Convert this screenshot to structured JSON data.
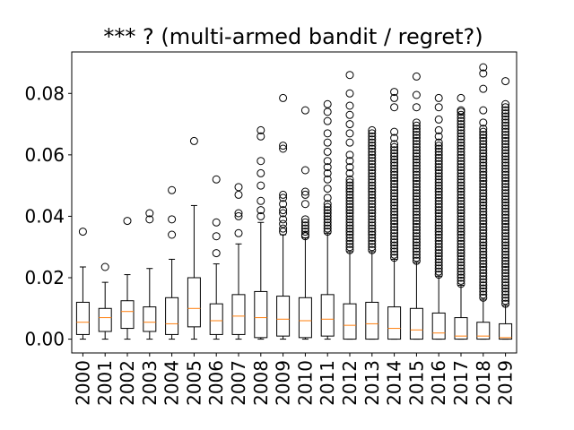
{
  "chart_data": {
    "type": "boxplot",
    "title": "*** ? (multi-armed bandit / regret?)",
    "xlabel": "",
    "ylabel": "",
    "ylim": [
      -0.0045,
      0.0935
    ],
    "yticks": [
      0.0,
      0.02,
      0.04,
      0.06,
      0.08
    ],
    "ytick_labels": [
      "0.00",
      "0.02",
      "0.04",
      "0.06",
      "0.08"
    ],
    "grid": false,
    "colors": {
      "box": "#000000",
      "median": "#ff7f0e",
      "flier": "#000000"
    },
    "categories": [
      "2000",
      "2001",
      "2002",
      "2003",
      "2004",
      "2005",
      "2006",
      "2007",
      "2008",
      "2009",
      "2010",
      "2011",
      "2012",
      "2013",
      "2014",
      "2015",
      "2016",
      "2017",
      "2018",
      "2019"
    ],
    "boxes": [
      {
        "label": "2000",
        "whislo": 0.0,
        "q1": 0.0015,
        "med": 0.0055,
        "q3": 0.012,
        "whishi": 0.0235,
        "fliers": [
          0.035
        ]
      },
      {
        "label": "2001",
        "whislo": 0.0,
        "q1": 0.0025,
        "med": 0.007,
        "q3": 0.01,
        "whishi": 0.0185,
        "fliers": [
          0.0235
        ]
      },
      {
        "label": "2002",
        "whislo": 0.0,
        "q1": 0.0035,
        "med": 0.009,
        "q3": 0.0125,
        "whishi": 0.021,
        "fliers": [
          0.0385
        ]
      },
      {
        "label": "2003",
        "whislo": 0.0,
        "q1": 0.0025,
        "med": 0.0055,
        "q3": 0.0105,
        "whishi": 0.023,
        "fliers": [
          0.039,
          0.041
        ]
      },
      {
        "label": "2004",
        "whislo": 0.0,
        "q1": 0.0015,
        "med": 0.005,
        "q3": 0.0135,
        "whishi": 0.026,
        "fliers": [
          0.034,
          0.039,
          0.0485
        ]
      },
      {
        "label": "2005",
        "whislo": 0.0,
        "q1": 0.004,
        "med": 0.01,
        "q3": 0.02,
        "whishi": 0.0435,
        "fliers": [
          0.0645
        ]
      },
      {
        "label": "2006",
        "whislo": 0.0,
        "q1": 0.0015,
        "med": 0.006,
        "q3": 0.0115,
        "whishi": 0.0245,
        "fliers": [
          0.028,
          0.0335,
          0.038,
          0.052
        ]
      },
      {
        "label": "2007",
        "whislo": 0.0,
        "q1": 0.0015,
        "med": 0.0075,
        "q3": 0.0145,
        "whishi": 0.031,
        "fliers": [
          0.0345,
          0.04,
          0.041,
          0.047,
          0.0495
        ]
      },
      {
        "label": "2008",
        "whislo": 0.0,
        "q1": 0.0005,
        "med": 0.007,
        "q3": 0.0155,
        "whishi": 0.038,
        "fliers": [
          0.04,
          0.042,
          0.045,
          0.05,
          0.054,
          0.058,
          0.066,
          0.068
        ]
      },
      {
        "label": "2009",
        "whislo": 0.0,
        "q1": 0.001,
        "med": 0.0065,
        "q3": 0.014,
        "whishi": 0.034,
        "fliers": [
          0.035,
          0.036,
          0.0375,
          0.039,
          0.041,
          0.042,
          0.044,
          0.046,
          0.047,
          0.062,
          0.063,
          0.0785
        ]
      },
      {
        "label": "2010",
        "whislo": 0.0,
        "q1": 0.0005,
        "med": 0.006,
        "q3": 0.0135,
        "whishi": 0.033,
        "fliers": [
          0.0335,
          0.034,
          0.035,
          0.036,
          0.037,
          0.038,
          0.039,
          0.044,
          0.047,
          0.048,
          0.055,
          0.0745
        ]
      },
      {
        "label": "2011",
        "whislo": 0.0,
        "q1": 0.001,
        "med": 0.0065,
        "q3": 0.0145,
        "whishi": 0.0345,
        "fliers": [
          0.035,
          0.036,
          0.037,
          0.038,
          0.039,
          0.04,
          0.041,
          0.042,
          0.043,
          0.044,
          0.046,
          0.049,
          0.052,
          0.054,
          0.056,
          0.058,
          0.061,
          0.064,
          0.067,
          0.071,
          0.074,
          0.0765
        ]
      },
      {
        "label": "2012",
        "whislo": 0.0,
        "q1": 0.0,
        "med": 0.0045,
        "q3": 0.0115,
        "whishi": 0.0285,
        "fliers": [
          0.029,
          0.03,
          0.031,
          0.032,
          0.033,
          0.034,
          0.035,
          0.036,
          0.037,
          0.038,
          0.039,
          0.04,
          0.041,
          0.042,
          0.043,
          0.044,
          0.045,
          0.046,
          0.047,
          0.048,
          0.049,
          0.05,
          0.051,
          0.052,
          0.054,
          0.056,
          0.058,
          0.06,
          0.064,
          0.067,
          0.07,
          0.073,
          0.076,
          0.08,
          0.086
        ]
      },
      {
        "label": "2013",
        "whislo": 0.0,
        "q1": 0.0,
        "med": 0.005,
        "q3": 0.012,
        "whishi": 0.0285,
        "fliers": [
          0.029,
          0.03,
          0.031,
          0.032,
          0.033,
          0.034,
          0.035,
          0.036,
          0.037,
          0.038,
          0.039,
          0.04,
          0.041,
          0.042,
          0.043,
          0.044,
          0.045,
          0.046,
          0.047,
          0.048,
          0.049,
          0.05,
          0.051,
          0.052,
          0.053,
          0.054,
          0.055,
          0.056,
          0.057,
          0.058,
          0.059,
          0.06,
          0.061,
          0.062,
          0.063,
          0.064,
          0.065,
          0.066,
          0.067,
          0.068
        ]
      },
      {
        "label": "2014",
        "whislo": 0.0,
        "q1": 0.0,
        "med": 0.0035,
        "q3": 0.0105,
        "whishi": 0.026,
        "fliers": [
          0.0265,
          0.0275,
          0.0285,
          0.0295,
          0.0305,
          0.0315,
          0.0325,
          0.0335,
          0.0345,
          0.0355,
          0.0365,
          0.0375,
          0.0385,
          0.0395,
          0.0405,
          0.0415,
          0.0425,
          0.0435,
          0.0445,
          0.0455,
          0.0465,
          0.0475,
          0.0485,
          0.0495,
          0.0505,
          0.0515,
          0.0525,
          0.0535,
          0.0545,
          0.0555,
          0.0565,
          0.0575,
          0.0585,
          0.0595,
          0.0605,
          0.0615,
          0.0625,
          0.0635,
          0.0655,
          0.0675,
          0.0755,
          0.0785,
          0.0805
        ]
      },
      {
        "label": "2015",
        "whislo": 0.0,
        "q1": 0.0,
        "med": 0.003,
        "q3": 0.01,
        "whishi": 0.025,
        "fliers": [
          0.0255,
          0.0265,
          0.0275,
          0.0285,
          0.0295,
          0.0305,
          0.0315,
          0.0325,
          0.0335,
          0.0345,
          0.0355,
          0.0365,
          0.0375,
          0.0385,
          0.0395,
          0.0405,
          0.0415,
          0.0425,
          0.0435,
          0.0445,
          0.0455,
          0.0465,
          0.0475,
          0.0485,
          0.0495,
          0.0505,
          0.0515,
          0.0525,
          0.0535,
          0.0545,
          0.0555,
          0.0565,
          0.0575,
          0.0585,
          0.0595,
          0.0605,
          0.0615,
          0.0625,
          0.0635,
          0.0645,
          0.0655,
          0.0665,
          0.0675,
          0.0685,
          0.0695,
          0.0705,
          0.0755,
          0.0795,
          0.0855
        ]
      },
      {
        "label": "2016",
        "whislo": 0.0,
        "q1": 0.0,
        "med": 0.002,
        "q3": 0.0085,
        "whishi": 0.0205,
        "fliers": [
          0.021,
          0.022,
          0.023,
          0.024,
          0.025,
          0.026,
          0.027,
          0.028,
          0.029,
          0.03,
          0.031,
          0.032,
          0.033,
          0.034,
          0.035,
          0.036,
          0.037,
          0.038,
          0.039,
          0.04,
          0.041,
          0.042,
          0.043,
          0.044,
          0.045,
          0.046,
          0.047,
          0.048,
          0.049,
          0.05,
          0.051,
          0.052,
          0.053,
          0.054,
          0.055,
          0.056,
          0.057,
          0.058,
          0.059,
          0.06,
          0.061,
          0.062,
          0.063,
          0.064,
          0.066,
          0.068,
          0.0715,
          0.0755,
          0.0785
        ]
      },
      {
        "label": "2017",
        "whislo": 0.0,
        "q1": 0.0,
        "med": 0.001,
        "q3": 0.007,
        "whishi": 0.0175,
        "fliers": [
          0.018,
          0.019,
          0.02,
          0.021,
          0.022,
          0.023,
          0.024,
          0.025,
          0.026,
          0.027,
          0.028,
          0.029,
          0.03,
          0.031,
          0.032,
          0.033,
          0.034,
          0.035,
          0.036,
          0.037,
          0.038,
          0.039,
          0.04,
          0.041,
          0.042,
          0.043,
          0.044,
          0.045,
          0.046,
          0.047,
          0.048,
          0.049,
          0.05,
          0.051,
          0.052,
          0.053,
          0.054,
          0.055,
          0.056,
          0.057,
          0.058,
          0.059,
          0.06,
          0.061,
          0.062,
          0.063,
          0.064,
          0.065,
          0.066,
          0.067,
          0.068,
          0.069,
          0.07,
          0.071,
          0.072,
          0.073,
          0.074,
          0.0745,
          0.0785
        ]
      },
      {
        "label": "2018",
        "whislo": 0.0,
        "q1": 0.0,
        "med": 0.001,
        "q3": 0.0055,
        "whishi": 0.013,
        "fliers": [
          0.0135,
          0.0145,
          0.0155,
          0.0165,
          0.0175,
          0.0185,
          0.0195,
          0.0205,
          0.0215,
          0.0225,
          0.0235,
          0.0245,
          0.0255,
          0.0265,
          0.0275,
          0.0285,
          0.0295,
          0.0305,
          0.0315,
          0.0325,
          0.0335,
          0.0345,
          0.0355,
          0.0365,
          0.0375,
          0.0385,
          0.0395,
          0.0405,
          0.0415,
          0.0425,
          0.0435,
          0.0445,
          0.0455,
          0.0465,
          0.0475,
          0.0485,
          0.0495,
          0.0505,
          0.0515,
          0.0525,
          0.0535,
          0.0545,
          0.0555,
          0.0565,
          0.0575,
          0.0585,
          0.0595,
          0.0605,
          0.0615,
          0.0625,
          0.0635,
          0.0645,
          0.0655,
          0.0665,
          0.0675,
          0.0685,
          0.0705,
          0.0745,
          0.0815,
          0.0865,
          0.0885
        ]
      },
      {
        "label": "2019",
        "whislo": 0.0,
        "q1": 0.0,
        "med": 0.0005,
        "q3": 0.005,
        "whishi": 0.011,
        "fliers": [
          0.0115,
          0.0125,
          0.0135,
          0.0145,
          0.0155,
          0.0165,
          0.0175,
          0.0185,
          0.0195,
          0.0205,
          0.0215,
          0.0225,
          0.0235,
          0.0245,
          0.0255,
          0.0265,
          0.0275,
          0.0285,
          0.0295,
          0.0305,
          0.0315,
          0.0325,
          0.0335,
          0.0345,
          0.0355,
          0.0365,
          0.0375,
          0.0385,
          0.0395,
          0.0405,
          0.0415,
          0.0425,
          0.0435,
          0.0445,
          0.0455,
          0.0465,
          0.0475,
          0.0485,
          0.0495,
          0.0505,
          0.0515,
          0.0525,
          0.0535,
          0.0545,
          0.0555,
          0.0565,
          0.0575,
          0.0585,
          0.0595,
          0.0605,
          0.0615,
          0.0625,
          0.0635,
          0.0645,
          0.0655,
          0.0665,
          0.0675,
          0.0685,
          0.0695,
          0.0705,
          0.0715,
          0.0725,
          0.0735,
          0.0745,
          0.0755,
          0.0765,
          0.084
        ]
      }
    ]
  }
}
